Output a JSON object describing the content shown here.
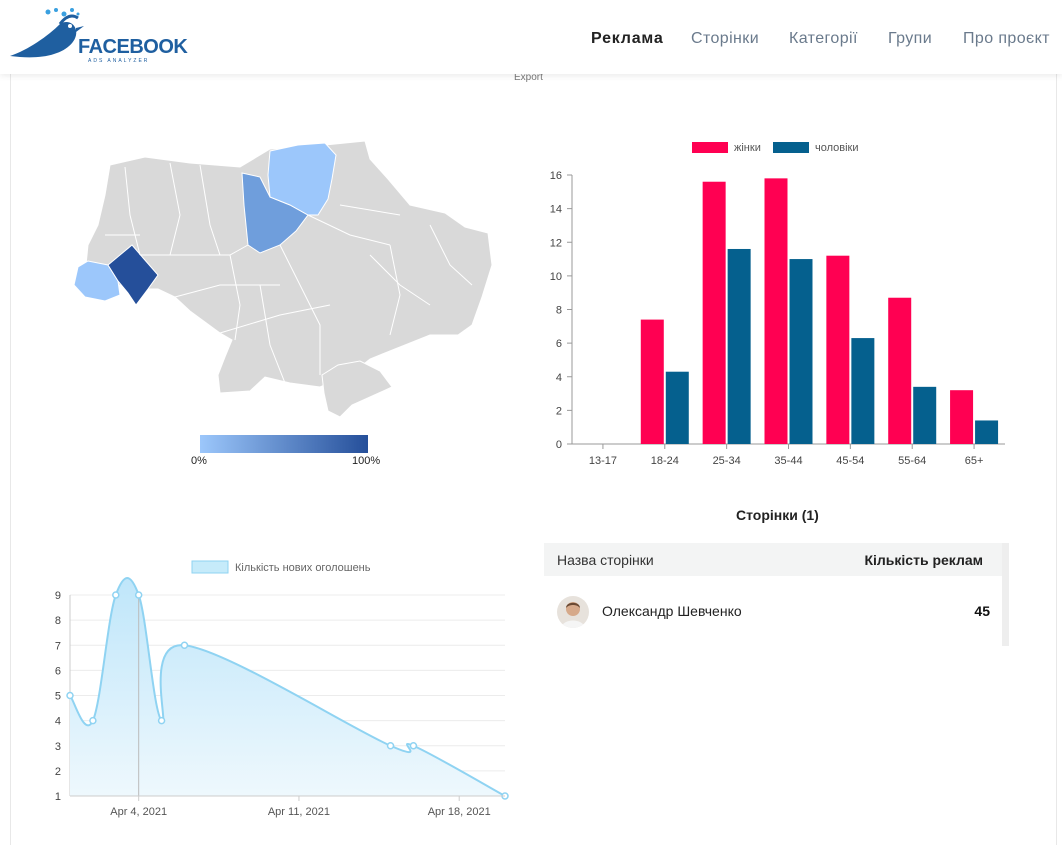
{
  "header": {
    "logo_text": "FACEBOOK",
    "logo_subtext": "ADS ANALYZER",
    "nav": [
      "Реклама",
      "Сторінки",
      "Категорії",
      "Групи",
      "Про проєкт"
    ],
    "active_nav": "Реклама"
  },
  "map": {
    "export_label": "Export",
    "legend_min": "0%",
    "legend_max": "100%",
    "colors": {
      "empty": "#d9d9d9",
      "low": "#9cc7fb",
      "mid": "#6f9edc",
      "high": "#254f9a"
    }
  },
  "pages_table": {
    "title": "Сторінки (1)",
    "col_name": "Назва сторінки",
    "col_count": "Кількість реклам",
    "rows": [
      {
        "name": "Олександр Шевченко",
        "count": "45"
      }
    ]
  },
  "chart_data": [
    {
      "type": "bar",
      "categories": [
        "13-17",
        "18-24",
        "25-34",
        "35-44",
        "45-54",
        "55-64",
        "65+"
      ],
      "series": [
        {
          "name": "жінки",
          "color": "#ff0052",
          "values": [
            0,
            7.4,
            15.6,
            15.8,
            11.2,
            8.7,
            3.2
          ]
        },
        {
          "name": "чоловіки",
          "color": "#05608e",
          "values": [
            0,
            4.3,
            11.6,
            11.0,
            6.3,
            3.4,
            1.4
          ]
        }
      ],
      "ylim": [
        0,
        16
      ],
      "yticks": [
        0,
        2,
        4,
        6,
        8,
        10,
        12,
        14,
        16
      ],
      "legend": "top"
    },
    {
      "type": "area",
      "series": [
        {
          "name": "Кількість нових оголошень",
          "color": "#8fd3f2",
          "x": [
            "2021-04-01",
            "2021-04-02",
            "2021-04-03",
            "2021-04-04",
            "2021-04-05",
            "2021-04-06",
            "2021-04-15",
            "2021-04-16",
            "2021-04-20"
          ],
          "values": [
            5,
            4,
            9,
            9,
            4,
            7,
            3,
            3,
            1
          ]
        }
      ],
      "ylim": [
        1,
        9
      ],
      "yticks": [
        1,
        2,
        3,
        4,
        5,
        6,
        7,
        8,
        9
      ],
      "x_ticks": [
        "Apr 4, 2021",
        "Apr 11, 2021",
        "Apr 18, 2021"
      ],
      "legend": "top"
    }
  ]
}
